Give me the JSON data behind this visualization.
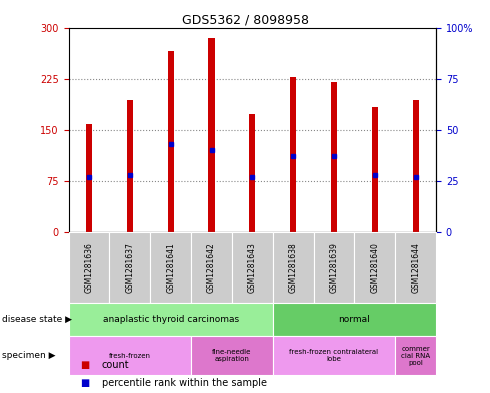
{
  "title": "GDS5362 / 8098958",
  "samples": [
    "GSM1281636",
    "GSM1281637",
    "GSM1281641",
    "GSM1281642",
    "GSM1281643",
    "GSM1281638",
    "GSM1281639",
    "GSM1281640",
    "GSM1281644"
  ],
  "counts": [
    158,
    193,
    265,
    285,
    173,
    228,
    220,
    183,
    193
  ],
  "percentile_ranks": [
    27,
    28,
    43,
    40,
    27,
    37,
    37,
    28,
    27
  ],
  "ylim_left": [
    0,
    300
  ],
  "ylim_right": [
    0,
    100
  ],
  "yticks_left": [
    0,
    75,
    150,
    225,
    300
  ],
  "yticks_right": [
    0,
    25,
    50,
    75,
    100
  ],
  "bar_color": "#cc0000",
  "marker_color": "#0000cc",
  "grid_color": "#888888",
  "disease_state_groups": [
    {
      "label": "anaplastic thyroid carcinomas",
      "start": 0,
      "end": 5,
      "color": "#99ee99"
    },
    {
      "label": "normal",
      "start": 5,
      "end": 9,
      "color": "#66cc66"
    }
  ],
  "specimen_groups": [
    {
      "label": "fresh-frozen",
      "start": 0,
      "end": 3,
      "color": "#ee99ee"
    },
    {
      "label": "fine-needle\naspiration",
      "start": 3,
      "end": 5,
      "color": "#dd77cc"
    },
    {
      "label": "fresh-frozen contralateral\nlobe",
      "start": 5,
      "end": 8,
      "color": "#ee99ee"
    },
    {
      "label": "commer\ncial RNA\npool",
      "start": 8,
      "end": 9,
      "color": "#dd77cc"
    }
  ],
  "left_label_color": "#cc0000",
  "right_label_color": "#0000cc",
  "tick_fontsize": 7,
  "bar_width": 0.15,
  "xlabel_bg_color": "#cccccc",
  "legend_square_red": "#cc0000",
  "legend_square_blue": "#0000cc"
}
